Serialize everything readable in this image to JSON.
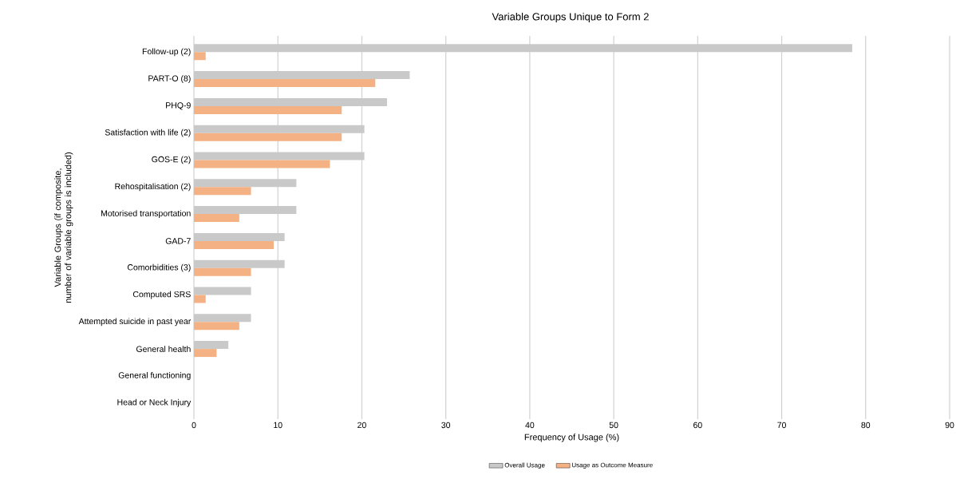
{
  "chart_data": {
    "type": "bar",
    "orientation": "horizontal",
    "title": "Variable Groups Unique to Form 2",
    "xlabel": "Frequency of Usage (%)",
    "ylabel": "Variable Groups (if composite, number of variable groups is included)",
    "categories": [
      "Follow-up (2)",
      "PART-O (8)",
      "PHQ-9",
      "Satisfaction with life (2)",
      "GOS-E (2)",
      "Rehospitalisation (2)",
      "Motorised transportation",
      "GAD-7",
      "Comorbidities (3)",
      "Computed SRS",
      "Attempted suicide in past year",
      "General health",
      "General functioning",
      "Head or Neck Injury"
    ],
    "series": [
      {
        "name": "Overall Usage",
        "color": "#c9c9c9",
        "values": [
          78.4,
          25.7,
          23.0,
          20.3,
          20.3,
          12.2,
          12.2,
          10.8,
          10.8,
          6.8,
          6.8,
          4.1,
          0,
          0
        ]
      },
      {
        "name": "Usage as Outcome Measure",
        "color": "#f4b183",
        "values": [
          1.4,
          21.6,
          17.6,
          17.6,
          16.2,
          6.8,
          5.4,
          9.5,
          6.8,
          1.4,
          5.4,
          2.7,
          0,
          0
        ]
      }
    ],
    "xlim": [
      0,
      90
    ],
    "xticks": [
      0,
      10,
      20,
      30,
      40,
      50,
      60,
      70,
      80,
      90
    ],
    "grid": "x",
    "legend": "bottom"
  }
}
